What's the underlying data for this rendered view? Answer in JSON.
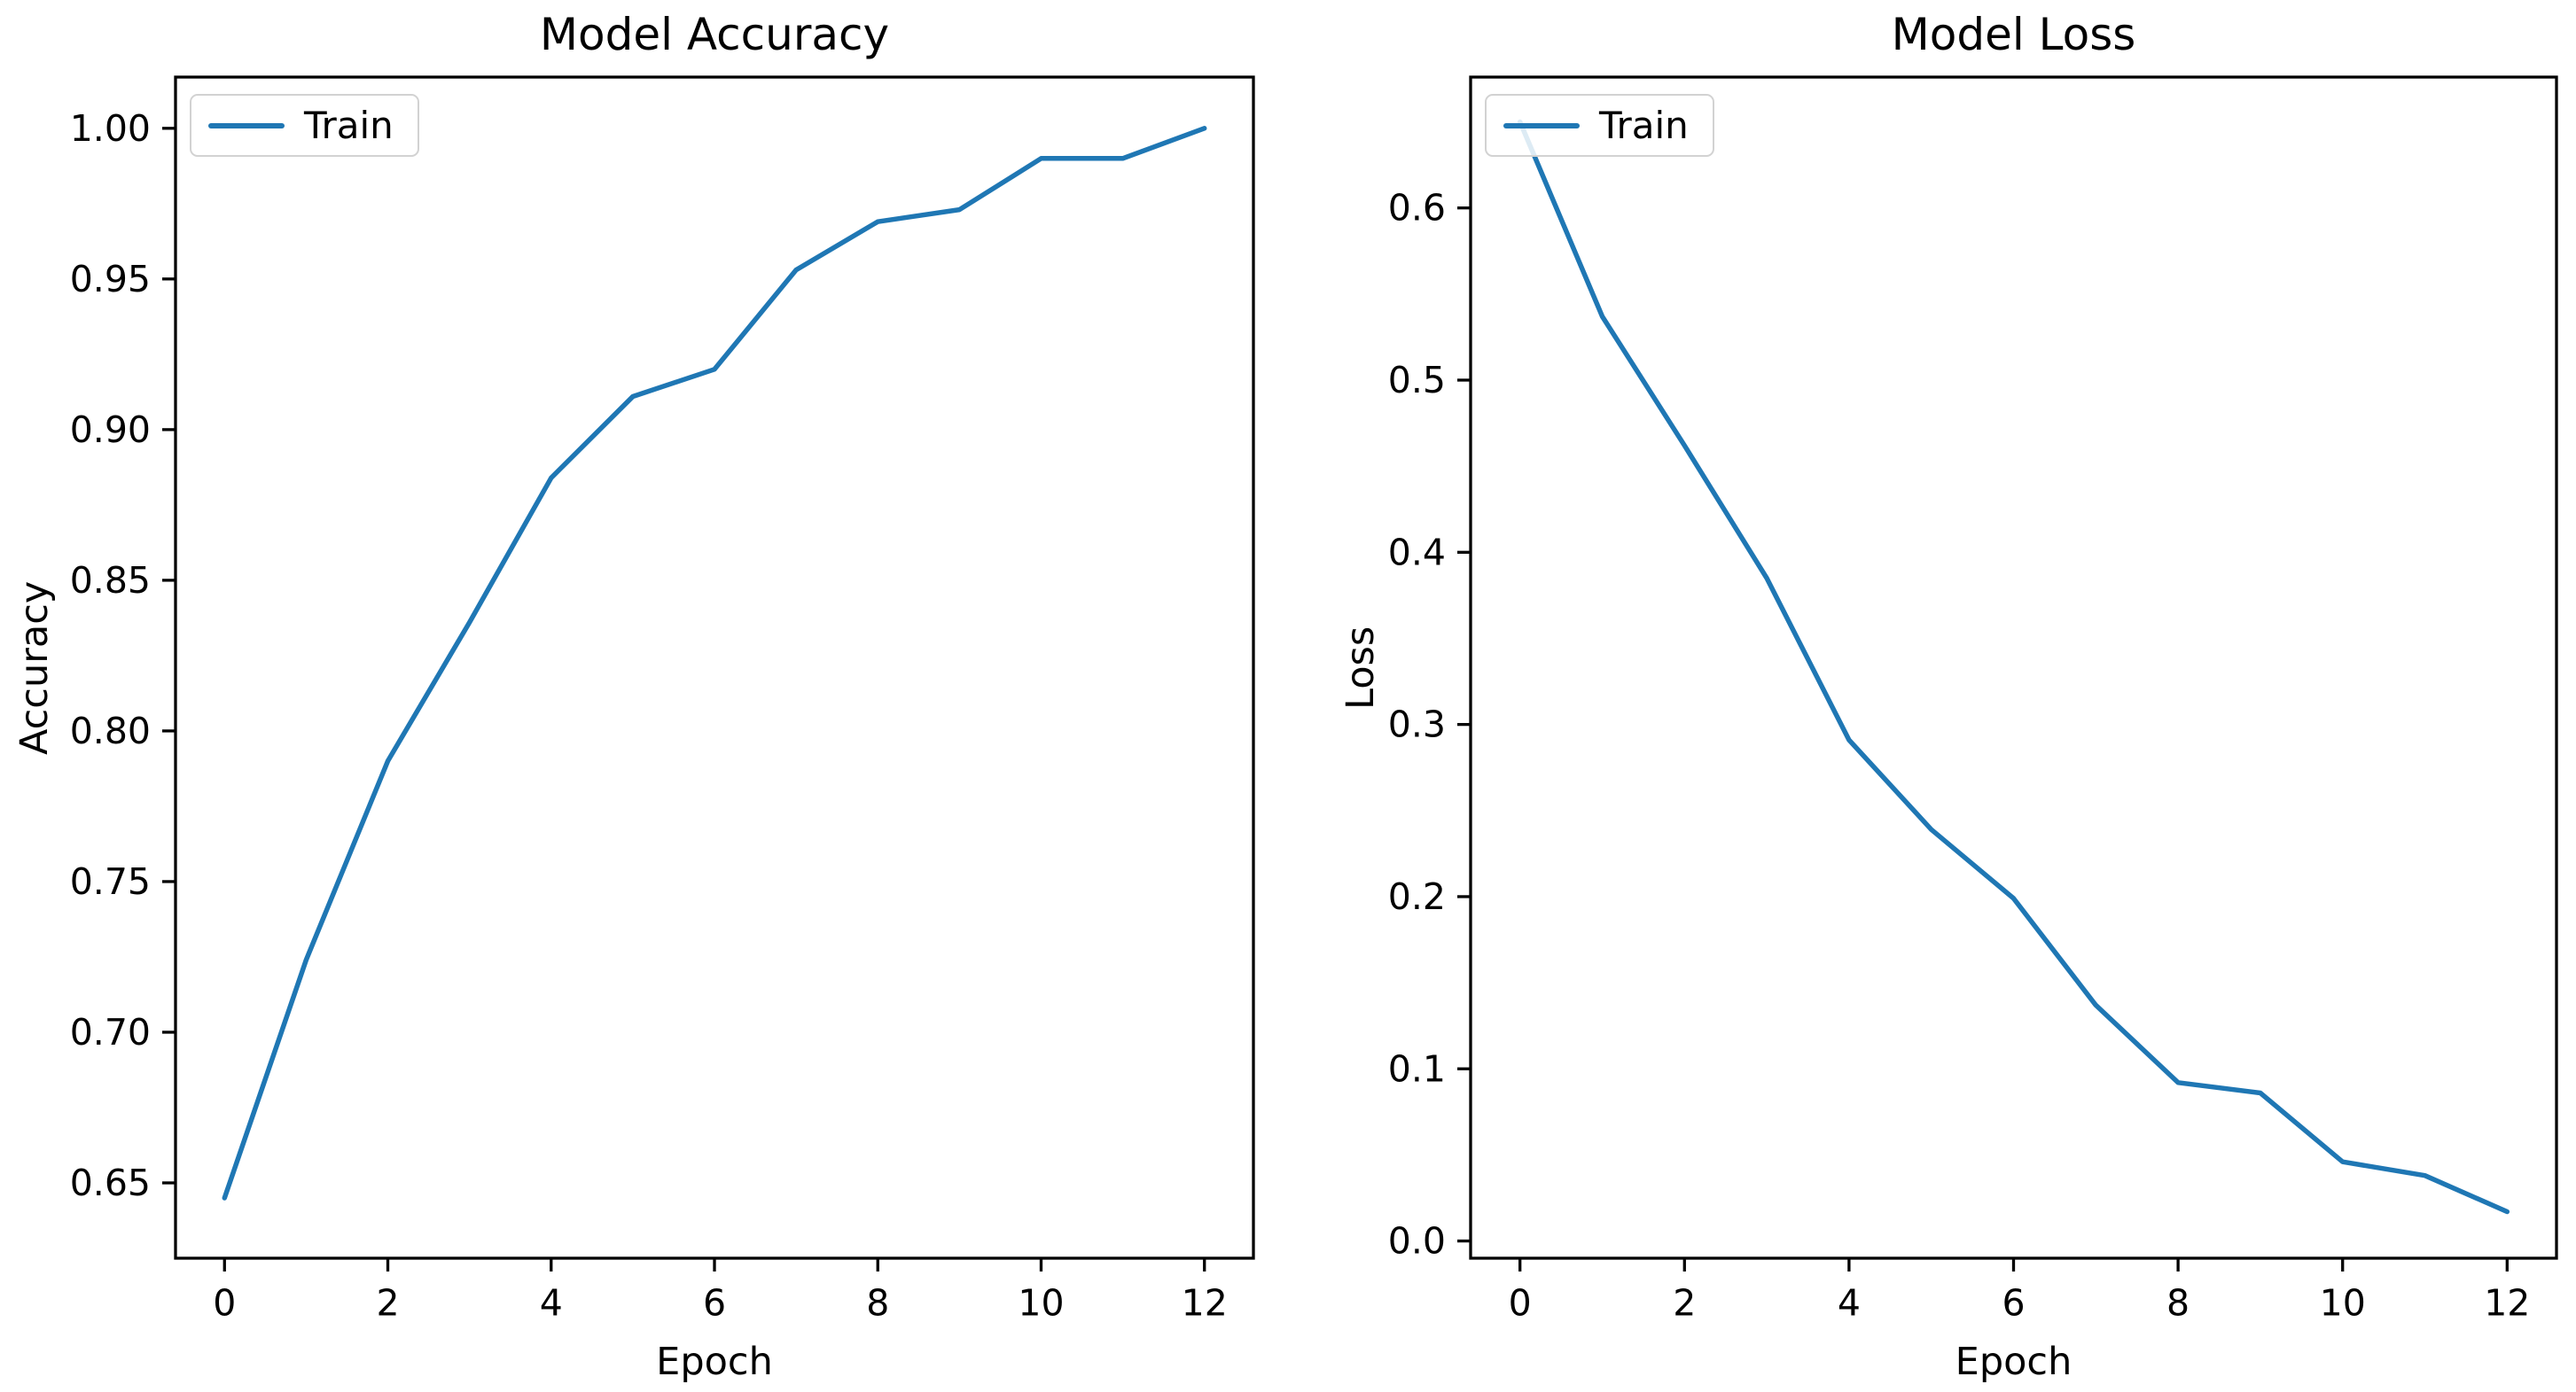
{
  "figure": {
    "background": "#ffffff",
    "text_color": "#000000",
    "frame_color": "#000000",
    "accent_line_color": "#1f77b4"
  },
  "chart_data": [
    {
      "type": "line",
      "title": "Model Accuracy",
      "xlabel": "Epoch",
      "ylabel": "Accuracy",
      "x": [
        0,
        1,
        2,
        3,
        4,
        5,
        6,
        7,
        8,
        9,
        10,
        11,
        12
      ],
      "series": [
        {
          "name": "Train",
          "color": "#1f77b4",
          "values": [
            0.645,
            0.724,
            0.79,
            0.836,
            0.884,
            0.911,
            0.92,
            0.953,
            0.969,
            0.973,
            0.99,
            0.99,
            1.0
          ]
        }
      ],
      "legend": {
        "labels": [
          "Train"
        ],
        "position": "upper left"
      },
      "xlim": [
        -0.6,
        12.6
      ],
      "ylim": [
        0.625,
        1.017
      ],
      "x_ticks": {
        "values": [
          0,
          2,
          4,
          6,
          8,
          10,
          12
        ],
        "labels": [
          "0",
          "2",
          "4",
          "6",
          "8",
          "10",
          "12"
        ]
      },
      "y_ticks": {
        "values": [
          0.65,
          0.7,
          0.75,
          0.8,
          0.85,
          0.9,
          0.95,
          1.0
        ],
        "labels": [
          "0.65",
          "0.70",
          "0.75",
          "0.80",
          "0.85",
          "0.90",
          "0.95",
          "1.00"
        ]
      },
      "grid": false
    },
    {
      "type": "line",
      "title": "Model Loss",
      "xlabel": "Epoch",
      "ylabel": "Loss",
      "x": [
        0,
        1,
        2,
        3,
        4,
        5,
        6,
        7,
        8,
        9,
        10,
        11,
        12
      ],
      "series": [
        {
          "name": "Train",
          "color": "#1f77b4",
          "values": [
            0.65,
            0.537,
            0.462,
            0.385,
            0.291,
            0.239,
            0.199,
            0.137,
            0.092,
            0.086,
            0.046,
            0.038,
            0.017
          ]
        }
      ],
      "legend": {
        "labels": [
          "Train"
        ],
        "position": "upper left"
      },
      "xlim": [
        -0.6,
        12.6
      ],
      "ylim": [
        -0.01,
        0.676
      ],
      "x_ticks": {
        "values": [
          0,
          2,
          4,
          6,
          8,
          10,
          12
        ],
        "labels": [
          "0",
          "2",
          "4",
          "6",
          "8",
          "10",
          "12"
        ]
      },
      "y_ticks": {
        "values": [
          0.0,
          0.1,
          0.2,
          0.3,
          0.4,
          0.5,
          0.6
        ],
        "labels": [
          "0.0",
          "0.1",
          "0.2",
          "0.3",
          "0.4",
          "0.5",
          "0.6"
        ]
      },
      "grid": false
    }
  ]
}
